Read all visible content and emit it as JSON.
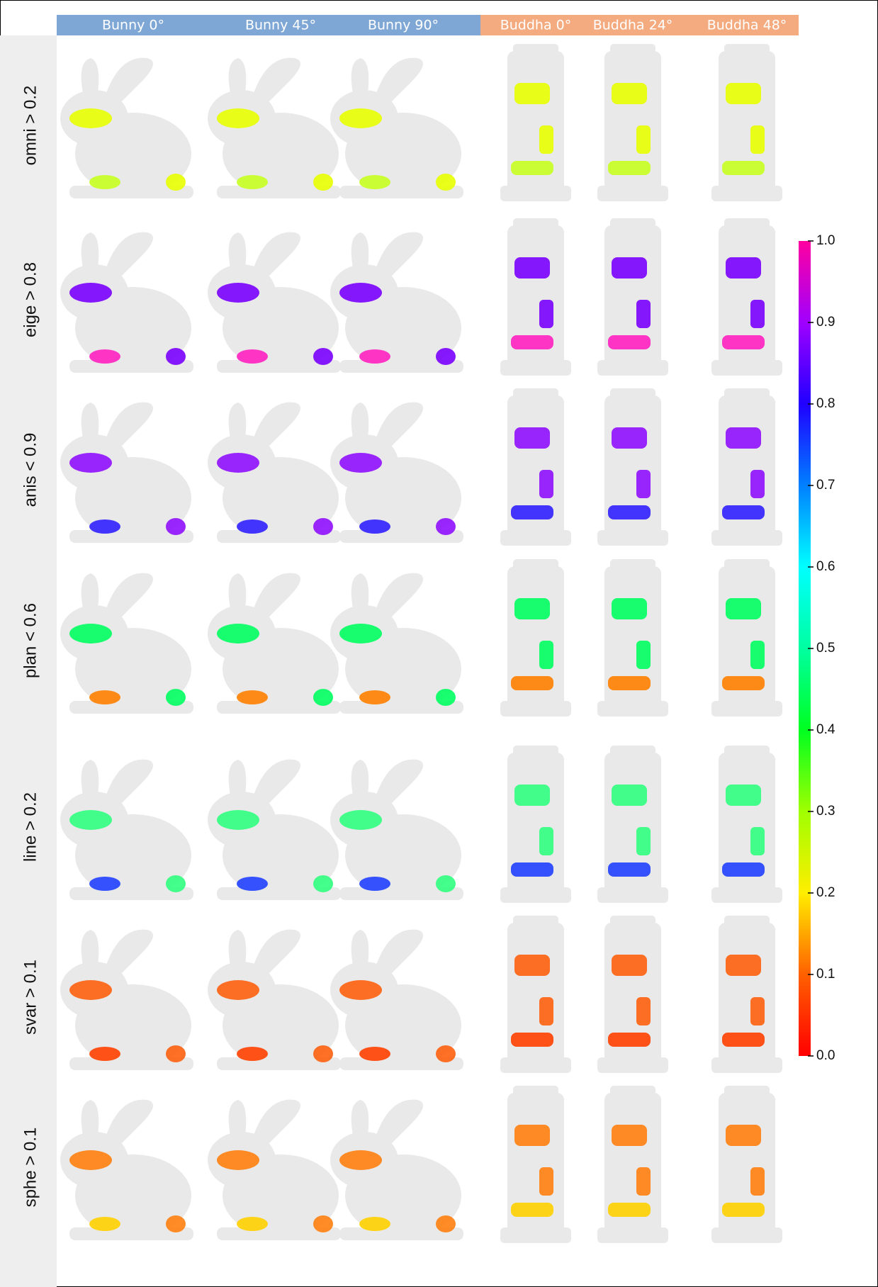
{
  "header": {
    "columns": [
      "Bunny 0°",
      "Bunny 45°",
      "Bunny 90°",
      "Buddha 0°",
      "Buddha 24°",
      "Buddha 48°"
    ]
  },
  "rows": [
    "omni > 0.2",
    "eige > 0.8",
    "anis < 0.9",
    "plan < 0.6",
    "line > 0.2",
    "svar > 0.1",
    "sphe > 0.1"
  ],
  "colorbar": {
    "lim": [
      0,
      1
    ],
    "ticks": [
      {
        "value": 0,
        "label": "0.0"
      },
      0.1,
      0.2,
      0.3,
      0.4,
      0.5,
      0.6,
      0.7,
      0.8,
      0.9,
      {
        "value": 1,
        "label": "1.0"
      }
    ]
  }
}
